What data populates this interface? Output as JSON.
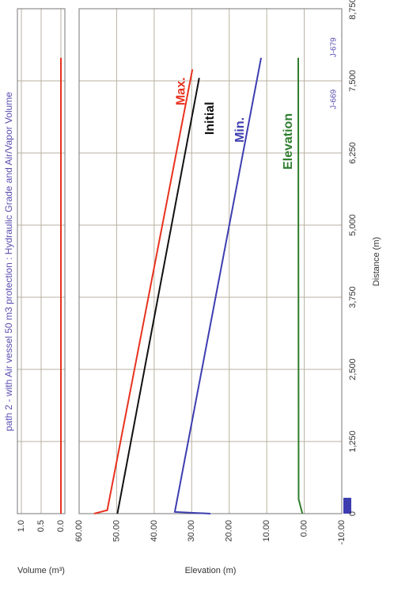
{
  "chart_data": [
    {
      "type": "line",
      "title": "path 2 - with Air vessel 50 m3 protection : Hydraulic Grade and Air/Vapor Volume",
      "y_label": "Volume (m³)",
      "x": [
        0,
        7900
      ],
      "values": [
        0,
        0
      ],
      "color": "#e8321f",
      "xlim": [
        0,
        8750
      ],
      "ylim": [
        -0.1,
        1.1
      ],
      "yticks": [
        {
          "value": 1,
          "label": "1.0"
        },
        {
          "value": 0.5,
          "label": "0.5"
        },
        {
          "value": 0,
          "label": "0.0"
        }
      ],
      "grid": true
    },
    {
      "type": "line",
      "x_label": "Distance (m)",
      "y_label": "Elevation (m)",
      "xlim": [
        0,
        8750
      ],
      "ylim": [
        -10,
        60
      ],
      "xticks": [
        0,
        {
          "value": 1250,
          "label": "1,250"
        },
        {
          "value": 2500,
          "label": "2,500"
        },
        {
          "value": 3750,
          "label": "3,750"
        },
        {
          "value": 5000,
          "label": "5,000"
        },
        {
          "value": 6250,
          "label": "6,250"
        },
        {
          "value": 7500,
          "label": "7,500"
        },
        {
          "value": 8750,
          "label": "8,750"
        }
      ],
      "yticks": [
        {
          "value": 60,
          "label": "60.00"
        },
        {
          "value": 50,
          "label": "50.00"
        },
        {
          "value": 40,
          "label": "40.00"
        },
        {
          "value": 30,
          "label": "30.00"
        },
        {
          "value": 20,
          "label": "20.00"
        },
        {
          "value": 10,
          "label": "10.00"
        },
        {
          "value": 0,
          "label": "0.00"
        },
        {
          "value": -10,
          "label": "-10.00"
        }
      ],
      "grid": true,
      "series": [
        {
          "name": "Max.",
          "color": "#e8321f",
          "x": [
            0,
            60,
            7700
          ],
          "values": [
            56,
            52.5,
            29.8
          ]
        },
        {
          "name": "Initial",
          "color": "#111111",
          "x": [
            0,
            7550
          ],
          "values": [
            49.8,
            28
          ]
        },
        {
          "name": "Min.",
          "color": "#3d3db0",
          "x": [
            0,
            30,
            7900
          ],
          "values": [
            25,
            34.5,
            11.5
          ]
        },
        {
          "name": "Elevation",
          "color": "#2e7d2e",
          "x": [
            0,
            250,
            7900
          ],
          "values": [
            0.5,
            1.5,
            1.6
          ]
        }
      ],
      "annotations": [
        {
          "text": "J-679",
          "x": 8080
        },
        {
          "text": "J-669",
          "x": 7180
        }
      ]
    }
  ]
}
